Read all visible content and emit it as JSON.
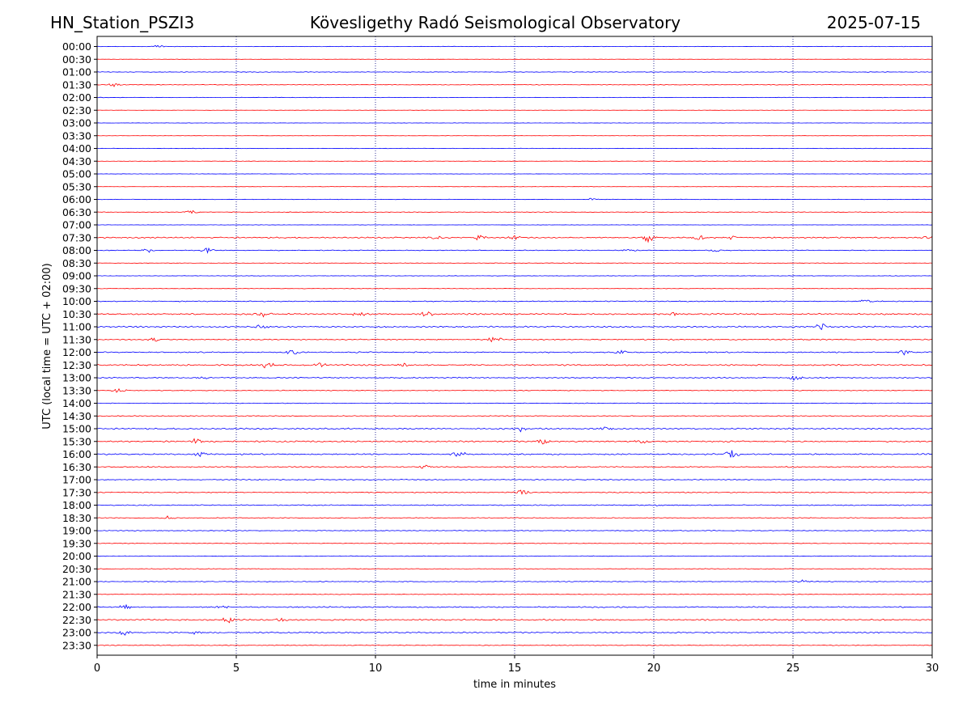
{
  "header": {
    "station": "HN_Station_PSZI3",
    "observatory": "Kövesligethy Radó Seismological Observatory",
    "date": "2025-07-15"
  },
  "colors": {
    "even_rows": "#0000ff",
    "odd_rows": "#ff0000",
    "grid": "#000080"
  },
  "chart_data": {
    "type": "line",
    "title": "",
    "xlabel": "time in minutes",
    "ylabel": "UTC (local time = UTC + 02:00)",
    "xlim": [
      0,
      30
    ],
    "xticks": [
      "0",
      "5",
      "10",
      "15",
      "20",
      "25",
      "30"
    ],
    "grid": "vertical dotted",
    "row_labels": [
      "00:00",
      "00:30",
      "01:00",
      "01:30",
      "02:00",
      "02:30",
      "03:00",
      "03:30",
      "04:00",
      "04:30",
      "05:00",
      "05:30",
      "06:00",
      "06:30",
      "07:00",
      "07:30",
      "08:00",
      "08:30",
      "09:00",
      "09:30",
      "10:00",
      "10:30",
      "11:00",
      "11:30",
      "12:00",
      "12:30",
      "13:00",
      "13:30",
      "14:00",
      "14:30",
      "15:00",
      "15:30",
      "16:00",
      "16:30",
      "17:00",
      "17:30",
      "18:00",
      "18:30",
      "19:00",
      "19:30",
      "20:00",
      "20:30",
      "21:00",
      "21:30",
      "22:00",
      "22:30",
      "23:00",
      "23:30"
    ],
    "activity": [
      0.3,
      0.2,
      0.4,
      0.4,
      0.3,
      0.2,
      0.2,
      0.2,
      0.3,
      0.3,
      0.2,
      0.2,
      0.3,
      0.4,
      0.2,
      0.8,
      0.5,
      0.3,
      0.3,
      0.3,
      0.6,
      0.9,
      0.9,
      0.7,
      0.8,
      0.9,
      0.7,
      0.5,
      0.4,
      0.5,
      0.9,
      0.9,
      0.9,
      0.7,
      0.6,
      0.6,
      0.6,
      0.5,
      0.5,
      0.4,
      0.4,
      0.4,
      0.5,
      0.4,
      0.8,
      0.9,
      0.8,
      0.5
    ],
    "events": [
      {
        "row": "00:00",
        "t": 2.2,
        "amp": 0.4
      },
      {
        "row": "01:30",
        "t": 0.6,
        "amp": 0.5
      },
      {
        "row": "06:00",
        "t": 17.8,
        "amp": 0.4
      },
      {
        "row": "06:30",
        "t": 3.4,
        "amp": 0.5
      },
      {
        "row": "07:30",
        "t": 12.2,
        "amp": 0.6
      },
      {
        "row": "07:30",
        "t": 13.7,
        "amp": 0.8
      },
      {
        "row": "07:30",
        "t": 15.0,
        "amp": 0.6
      },
      {
        "row": "07:30",
        "t": 19.8,
        "amp": 1.2
      },
      {
        "row": "07:30",
        "t": 21.6,
        "amp": 0.7
      },
      {
        "row": "07:30",
        "t": 22.8,
        "amp": 0.6
      },
      {
        "row": "07:30",
        "t": 29.8,
        "amp": 0.6
      },
      {
        "row": "08:00",
        "t": 1.8,
        "amp": 0.6
      },
      {
        "row": "08:00",
        "t": 4.0,
        "amp": 0.9
      },
      {
        "row": "08:00",
        "t": 19.1,
        "amp": 0.4
      },
      {
        "row": "08:00",
        "t": 22.2,
        "amp": 0.4
      },
      {
        "row": "10:00",
        "t": 27.6,
        "amp": 0.7
      },
      {
        "row": "10:30",
        "t": 6.0,
        "amp": 0.8
      },
      {
        "row": "10:30",
        "t": 9.4,
        "amp": 0.6
      },
      {
        "row": "10:30",
        "t": 11.8,
        "amp": 0.8
      },
      {
        "row": "10:30",
        "t": 20.7,
        "amp": 0.6
      },
      {
        "row": "11:00",
        "t": 5.9,
        "amp": 0.6
      },
      {
        "row": "11:00",
        "t": 26.0,
        "amp": 1.0
      },
      {
        "row": "11:30",
        "t": 2.1,
        "amp": 0.6
      },
      {
        "row": "11:30",
        "t": 14.3,
        "amp": 0.9
      },
      {
        "row": "12:00",
        "t": 7.0,
        "amp": 0.8
      },
      {
        "row": "12:00",
        "t": 18.8,
        "amp": 0.7
      },
      {
        "row": "12:00",
        "t": 29.0,
        "amp": 0.6
      },
      {
        "row": "12:30",
        "t": 6.1,
        "amp": 1.0
      },
      {
        "row": "12:30",
        "t": 8.0,
        "amp": 0.7
      },
      {
        "row": "12:30",
        "t": 11.0,
        "amp": 0.6
      },
      {
        "row": "13:00",
        "t": 25.1,
        "amp": 0.9
      },
      {
        "row": "13:00",
        "t": 3.8,
        "amp": 0.5
      },
      {
        "row": "13:30",
        "t": 0.8,
        "amp": 0.6
      },
      {
        "row": "15:00",
        "t": 15.2,
        "amp": 0.8
      },
      {
        "row": "15:00",
        "t": 18.3,
        "amp": 0.8
      },
      {
        "row": "15:30",
        "t": 3.6,
        "amp": 0.9
      },
      {
        "row": "15:30",
        "t": 16.0,
        "amp": 0.7
      },
      {
        "row": "15:30",
        "t": 19.5,
        "amp": 0.8
      },
      {
        "row": "16:00",
        "t": 3.7,
        "amp": 0.7
      },
      {
        "row": "16:00",
        "t": 13.0,
        "amp": 0.7
      },
      {
        "row": "16:00",
        "t": 22.8,
        "amp": 1.2
      },
      {
        "row": "16:30",
        "t": 11.8,
        "amp": 0.7
      },
      {
        "row": "17:30",
        "t": 15.3,
        "amp": 1.0
      },
      {
        "row": "18:00",
        "t": 20.0,
        "amp": 0.5
      },
      {
        "row": "18:30",
        "t": 2.5,
        "amp": 0.6
      },
      {
        "row": "21:00",
        "t": 25.3,
        "amp": 0.5
      },
      {
        "row": "22:00",
        "t": 1.0,
        "amp": 0.6
      },
      {
        "row": "22:00",
        "t": 4.5,
        "amp": 0.7
      },
      {
        "row": "22:30",
        "t": 4.7,
        "amp": 0.8
      },
      {
        "row": "22:30",
        "t": 6.6,
        "amp": 0.6
      },
      {
        "row": "23:00",
        "t": 1.0,
        "amp": 0.8
      },
      {
        "row": "23:00",
        "t": 3.5,
        "amp": 0.6
      }
    ]
  }
}
